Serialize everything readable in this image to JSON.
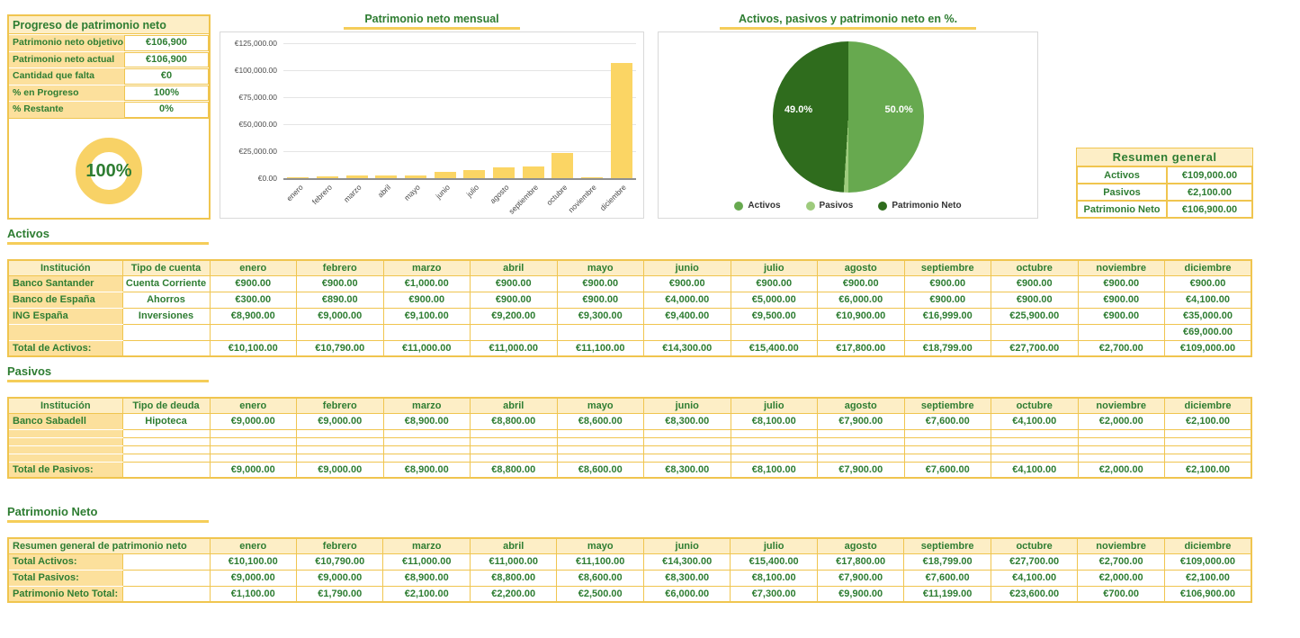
{
  "colors": {
    "gold_border": "#f0c54f",
    "header_bg": "#fdeec6",
    "label_bg": "#fce09c",
    "green_text": "#2e7d32",
    "bar_yellow": "#fbd564",
    "donut_ring": "#f8d266",
    "chart_box_border": "#d9d9d9"
  },
  "progress_panel": {
    "title": "Progreso de patrimonio neto",
    "rows": [
      {
        "label": "Patrimonio neto objetivo",
        "value": "€106,900"
      },
      {
        "label": "Patrimonio neto actual",
        "value": "€106,900"
      },
      {
        "label": "Cantidad que falta",
        "value": "€0"
      },
      {
        "label": "% en Progreso",
        "value": "100%"
      },
      {
        "label": "% Restante",
        "value": "0%"
      }
    ],
    "donut_label": "100%"
  },
  "chart_data": [
    {
      "type": "bar",
      "title": "Patrimonio neto mensual",
      "categories": [
        "enero",
        "febrero",
        "marzo",
        "abril",
        "mayo",
        "junio",
        "julio",
        "agosto",
        "septiembre",
        "octubre",
        "noviembre",
        "diciembre"
      ],
      "values": [
        1100,
        1790,
        2100,
        2200,
        2500,
        6000,
        7300,
        9900,
        11199,
        23600,
        700,
        106900
      ],
      "series_name": "Patrimonio Neto",
      "xlabel": "",
      "ylabel": "",
      "ylim": [
        0,
        125000
      ],
      "ytick_labels": [
        "€0.00",
        "€25,000.00",
        "€50,000.00",
        "€75,000.00",
        "€100,000.00",
        "€125,000.00"
      ],
      "grid": true,
      "bar_color": "#fbd564"
    },
    {
      "type": "pie",
      "title": "Activos, pasivos y patrimonio neto en %.",
      "labels": [
        "Activos",
        "Pasivos",
        "Patrimonio Neto"
      ],
      "values": [
        50.0,
        1.0,
        49.0
      ],
      "colors": [
        "#67a94f",
        "#9ecb7d",
        "#2f6c1d"
      ],
      "slice_labels": {
        "activos": "50.0%",
        "pasivos": "",
        "patrimonio": "49.0%"
      },
      "legend_position": "bottom"
    },
    {
      "type": "donut",
      "label": "100%",
      "percent": 100,
      "ring_color": "#f8d266"
    }
  ],
  "resumen": {
    "title": "Resumen general",
    "rows": [
      {
        "label": "Activos",
        "value": "€109,000.00"
      },
      {
        "label": "Pasivos",
        "value": "€2,100.00"
      },
      {
        "label": "Patrimonio Neto",
        "value": "€106,900.00"
      }
    ]
  },
  "sections": {
    "activos_title": "Activos",
    "pasivos_title": "Pasivos",
    "pn_title": "Patrimonio Neto"
  },
  "tables": {
    "activos": {
      "headers": [
        "Institución",
        "Tipo de cuenta",
        "enero",
        "febrero",
        "marzo",
        "abril",
        "mayo",
        "junio",
        "julio",
        "agosto",
        "septiembre",
        "octubre",
        "noviembre",
        "diciembre"
      ],
      "rows": [
        [
          "Banco Santander",
          "Cuenta Corriente",
          "€900.00",
          "€900.00",
          "€1,000.00",
          "€900.00",
          "€900.00",
          "€900.00",
          "€900.00",
          "€900.00",
          "€900.00",
          "€900.00",
          "€900.00",
          "€900.00"
        ],
        [
          "Banco de España",
          "Ahorros",
          "€300.00",
          "€890.00",
          "€900.00",
          "€900.00",
          "€900.00",
          "€4,000.00",
          "€5,000.00",
          "€6,000.00",
          "€900.00",
          "€900.00",
          "€900.00",
          "€4,100.00"
        ],
        [
          "ING España",
          "Inversiones",
          "€8,900.00",
          "€9,000.00",
          "€9,100.00",
          "€9,200.00",
          "€9,300.00",
          "€9,400.00",
          "€9,500.00",
          "€10,900.00",
          "€16,999.00",
          "€25,900.00",
          "€900.00",
          "€35,000.00"
        ],
        [
          "",
          "",
          "",
          "",
          "",
          "",
          "",
          "",
          "",
          "",
          "",
          "",
          "",
          "€69,000.00"
        ],
        [
          "Total de Activos:",
          "",
          "€10,100.00",
          "€10,790.00",
          "€11,000.00",
          "€11,000.00",
          "€11,100.00",
          "€14,300.00",
          "€15,400.00",
          "€17,800.00",
          "€18,799.00",
          "€27,700.00",
          "€2,700.00",
          "€109,000.00"
        ]
      ]
    },
    "pasivos": {
      "headers": [
        "Institución",
        "Tipo de deuda",
        "enero",
        "febrero",
        "marzo",
        "abril",
        "mayo",
        "junio",
        "julio",
        "agosto",
        "septiembre",
        "octubre",
        "noviembre",
        "diciembre"
      ],
      "rows": [
        [
          "Banco Sabadell",
          "Hipoteca",
          "€9,000.00",
          "€9,000.00",
          "€8,900.00",
          "€8,800.00",
          "€8,600.00",
          "€8,300.00",
          "€8,100.00",
          "€7,900.00",
          "€7,600.00",
          "€4,100.00",
          "€2,000.00",
          "€2,100.00"
        ],
        [
          "",
          "",
          "",
          "",
          "",
          "",
          "",
          "",
          "",
          "",
          "",
          "",
          "",
          ""
        ],
        [
          "",
          "",
          "",
          "",
          "",
          "",
          "",
          "",
          "",
          "",
          "",
          "",
          "",
          ""
        ],
        [
          "",
          "",
          "",
          "",
          "",
          "",
          "",
          "",
          "",
          "",
          "",
          "",
          "",
          ""
        ],
        [
          "",
          "",
          "",
          "",
          "",
          "",
          "",
          "",
          "",
          "",
          "",
          "",
          "",
          ""
        ],
        [
          "Total de Pasivos:",
          "",
          "€9,000.00",
          "€9,000.00",
          "€8,900.00",
          "€8,800.00",
          "€8,600.00",
          "€8,300.00",
          "€8,100.00",
          "€7,900.00",
          "€7,600.00",
          "€4,100.00",
          "€2,000.00",
          "€2,100.00"
        ]
      ]
    },
    "pn": {
      "first_header_colspan": 2,
      "headers": [
        "Resumen general de patrimonio neto",
        "enero",
        "febrero",
        "marzo",
        "abril",
        "mayo",
        "junio",
        "julio",
        "agosto",
        "septiembre",
        "octubre",
        "noviembre",
        "diciembre"
      ],
      "rows": [
        [
          "Total Activos:",
          "",
          "€10,100.00",
          "€10,790.00",
          "€11,000.00",
          "€11,000.00",
          "€11,100.00",
          "€14,300.00",
          "€15,400.00",
          "€17,800.00",
          "€18,799.00",
          "€27,700.00",
          "€2,700.00",
          "€109,000.00"
        ],
        [
          "Total Pasivos:",
          "",
          "€9,000.00",
          "€9,000.00",
          "€8,900.00",
          "€8,800.00",
          "€8,600.00",
          "€8,300.00",
          "€8,100.00",
          "€7,900.00",
          "€7,600.00",
          "€4,100.00",
          "€2,000.00",
          "€2,100.00"
        ],
        [
          "Patrimonio Neto Total:",
          "",
          "€1,100.00",
          "€1,790.00",
          "€2,100.00",
          "€2,200.00",
          "€2,500.00",
          "€6,000.00",
          "€7,300.00",
          "€9,900.00",
          "€11,199.00",
          "€23,600.00",
          "€700.00",
          "€106,900.00"
        ]
      ]
    }
  }
}
